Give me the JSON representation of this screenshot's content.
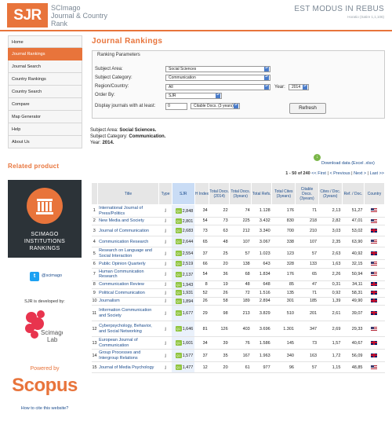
{
  "header": {
    "logo_text": "SJR",
    "site_name_line1": "SCImago",
    "site_name_line2": "Journal & Country",
    "site_name_line3": "Rank",
    "motto": "EST MODUS IN REBUS",
    "motto_sub": "Horatio (Satire 1,1,106)"
  },
  "sidebar": {
    "items": [
      {
        "label": "Home"
      },
      {
        "label": "Journal Rankings"
      },
      {
        "label": "Journal Search"
      },
      {
        "label": "Country Rankings"
      },
      {
        "label": "Country Search"
      },
      {
        "label": "Compare"
      },
      {
        "label": "Map Generator"
      },
      {
        "label": "Help"
      },
      {
        "label": "About Us"
      }
    ],
    "related_title": "Related product",
    "sir_line1": "SCIMAGO",
    "sir_line2": "INSTITUTIONS",
    "sir_line3": "RANKINGS",
    "twitter_handle": "@scimago",
    "developed_by": "SJR is developed by:",
    "lab_line1": "Scimago",
    "lab_line2": "Lab",
    "powered_by": "Powered by",
    "scopus": "Scopus",
    "cite_link": "How to cite this website?"
  },
  "main": {
    "title": "Journal Rankings",
    "params": {
      "legend": "Ranking Parameters",
      "subject_area_label": "Subject Area:",
      "subject_area_value": "Social Sciences",
      "subject_category_label": "Subject Category:",
      "subject_category_value": "Communication",
      "region_label": "Region/Country:",
      "region_value": "All",
      "year_label": "Year:",
      "year_value": "2014",
      "order_label": "Order By:",
      "order_value": "SJR",
      "display_label": "Display journals with at least:",
      "display_value": "0",
      "citable_value": "Citable Docs. (3 years)",
      "refresh_label": "Refresh"
    },
    "summary": {
      "area_label": "Subject Area:",
      "area_value": "Social Sciences.",
      "category_label": "Subject Category:",
      "category_value": "Communication.",
      "year_label": "Year:",
      "year_value": "2014."
    },
    "download_label": "Download data (Excel .xlsx)",
    "pager": {
      "range": "1 - 50 of 240",
      "first": "<< First",
      "prev": "< Previous",
      "next": "Next >",
      "last": "Last >>"
    }
  },
  "table": {
    "headers": {
      "title": "Title",
      "type": "Type",
      "sjr": "SJR",
      "h": "H Index",
      "docs": "Total Docs. (2014)",
      "docs3": "Total Docs. (3years)",
      "refs": "Total Refs.",
      "cites": "Total Cites (3years)",
      "citable": "Citable Docs. (3years)",
      "cpd": "Cites / Doc. (2years)",
      "rpd": "Ref. / Doc.",
      "country": "Country"
    },
    "rows": [
      {
        "rank": "1",
        "title": "International Journal of Press/Politics",
        "type": "j",
        "q": "Q1",
        "sjr": "2,848",
        "h": "34",
        "docs": "22",
        "docs3": "74",
        "refs": "1.128",
        "cites": "176",
        "citable": "71",
        "cpd": "2,13",
        "rpd": "51,27",
        "country": "us"
      },
      {
        "rank": "2",
        "title": "New Media and Society",
        "type": "j",
        "q": "Q1",
        "sjr": "2,801",
        "h": "54",
        "docs": "73",
        "docs3": "225",
        "refs": "3.432",
        "cites": "830",
        "citable": "218",
        "cpd": "2,82",
        "rpd": "47,01",
        "country": "us"
      },
      {
        "rank": "3",
        "title": "Journal of Communication",
        "type": "j",
        "q": "Q1",
        "sjr": "2,683",
        "h": "73",
        "docs": "63",
        "docs3": "212",
        "refs": "3.340",
        "cites": "700",
        "citable": "210",
        "cpd": "3,03",
        "rpd": "53,02",
        "country": "uk"
      },
      {
        "rank": "4",
        "title": "Communication Research",
        "type": "j",
        "q": "Q1",
        "sjr": "2,644",
        "h": "65",
        "docs": "48",
        "docs3": "107",
        "refs": "3.067",
        "cites": "338",
        "citable": "107",
        "cpd": "2,35",
        "rpd": "63,90",
        "country": "us"
      },
      {
        "rank": "5",
        "title": "Research on Language and Social Interaction",
        "type": "j",
        "q": "Q1",
        "sjr": "2,554",
        "h": "37",
        "docs": "25",
        "docs3": "57",
        "refs": "1.023",
        "cites": "123",
        "citable": "57",
        "cpd": "2,63",
        "rpd": "40,92",
        "country": "uk"
      },
      {
        "rank": "6",
        "title": "Public Opinion Quarterly",
        "type": "j",
        "q": "Q1",
        "sjr": "2,519",
        "h": "66",
        "docs": "20",
        "docs3": "138",
        "refs": "643",
        "cites": "328",
        "citable": "133",
        "cpd": "1,63",
        "rpd": "32,15",
        "country": "us"
      },
      {
        "rank": "7",
        "title": "Human Communication Research",
        "type": "j",
        "q": "Q1",
        "sjr": "2,137",
        "h": "54",
        "docs": "36",
        "docs3": "68",
        "refs": "1.834",
        "cites": "176",
        "citable": "65",
        "cpd": "2,26",
        "rpd": "50,94",
        "country": "us"
      },
      {
        "rank": "8",
        "title": "Communication Review",
        "type": "j",
        "q": "Q1",
        "sjr": "1,943",
        "h": "8",
        "docs": "19",
        "docs3": "48",
        "refs": "648",
        "cites": "85",
        "citable": "47",
        "cpd": "0,31",
        "rpd": "34,11",
        "country": "uk"
      },
      {
        "rank": "9",
        "title": "Political Communication",
        "type": "j",
        "q": "Q1",
        "sjr": "1,931",
        "h": "52",
        "docs": "26",
        "docs3": "72",
        "refs": "1.516",
        "cites": "135",
        "citable": "71",
        "cpd": "0,92",
        "rpd": "58,31",
        "country": "uk"
      },
      {
        "rank": "10",
        "title": "Journalism",
        "type": "j",
        "q": "Q1",
        "sjr": "1,894",
        "h": "26",
        "docs": "58",
        "docs3": "189",
        "refs": "2.894",
        "cites": "301",
        "citable": "185",
        "cpd": "1,39",
        "rpd": "49,90",
        "country": "uk"
      },
      {
        "rank": "11",
        "title": "Information Communication and Society",
        "type": "j",
        "q": "Q1",
        "sjr": "1,677",
        "h": "29",
        "docs": "98",
        "docs3": "213",
        "refs": "3.829",
        "cites": "510",
        "citable": "201",
        "cpd": "2,61",
        "rpd": "39,07",
        "country": "uk"
      },
      {
        "rank": "12",
        "title": "Cyberpsychology, Behavior, and Social Networking",
        "type": "j",
        "q": "Q1",
        "sjr": "1,646",
        "h": "81",
        "docs": "126",
        "docs3": "403",
        "refs": "3.696",
        "cites": "1.301",
        "citable": "347",
        "cpd": "2,69",
        "rpd": "29,33",
        "country": "us"
      },
      {
        "rank": "13",
        "title": "European Journal of Communication",
        "type": "j",
        "q": "Q1",
        "sjr": "1,601",
        "h": "34",
        "docs": "39",
        "docs3": "76",
        "refs": "1.586",
        "cites": "145",
        "citable": "73",
        "cpd": "1,57",
        "rpd": "40,67",
        "country": "uk"
      },
      {
        "rank": "14",
        "title": "Group Processes and Intergroup Relations",
        "type": "j",
        "q": "Q1",
        "sjr": "1,577",
        "h": "37",
        "docs": "35",
        "docs3": "167",
        "refs": "1.963",
        "cites": "340",
        "citable": "163",
        "cpd": "1,72",
        "rpd": "56,09",
        "country": "uk"
      },
      {
        "rank": "15",
        "title": "Journal of Media Psychology",
        "type": "j",
        "q": "Q1",
        "sjr": "1,477",
        "h": "12",
        "docs": "20",
        "docs3": "61",
        "refs": "977",
        "cites": "96",
        "citable": "57",
        "cpd": "1,15",
        "rpd": "48,85",
        "country": "us"
      }
    ]
  }
}
